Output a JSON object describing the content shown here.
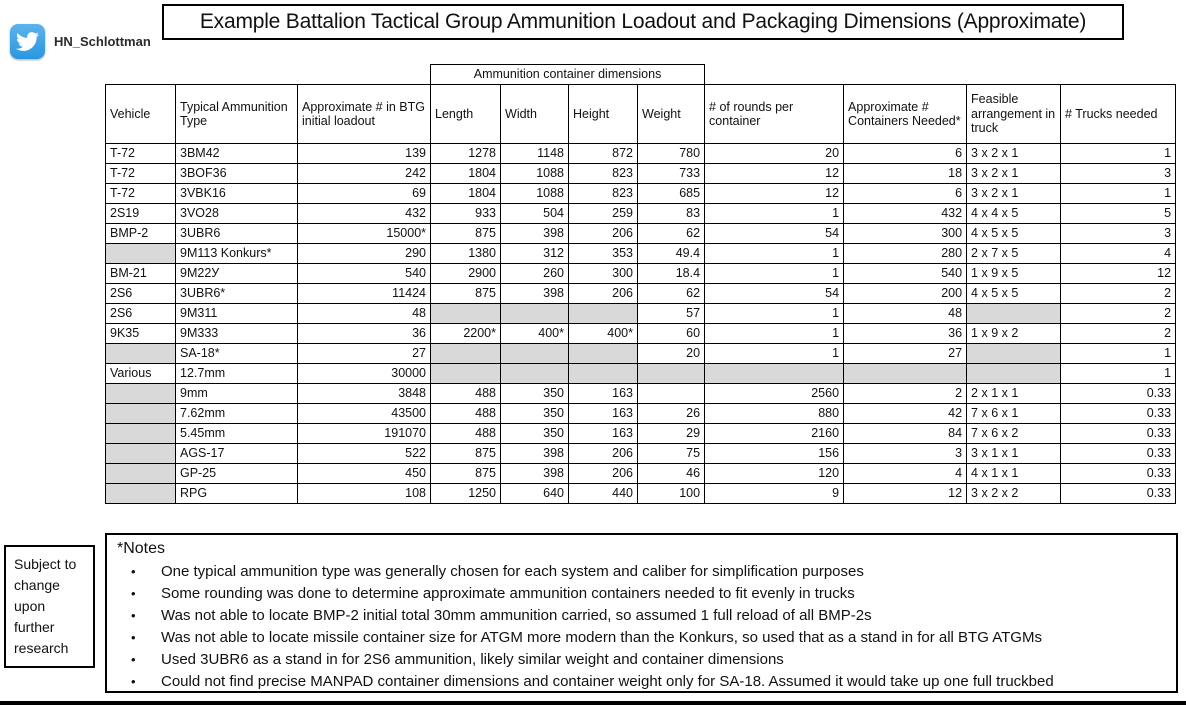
{
  "page": {
    "title": "Example Battalion Tactical Group Ammunition Loadout and Packaging Dimensions (Approximate)"
  },
  "twitter": {
    "handle": "HN_Schlottman",
    "icon": "twitter-bird-icon",
    "icon_color": "#2a97e0"
  },
  "side_note": "Subject to change upon further research",
  "table": {
    "group_header": "Ammunition container dimensions",
    "columns": [
      "Vehicle",
      "Typical Ammunition Type",
      "Approximate # in BTG initial loadout",
      "Length",
      "Width",
      "Height",
      "Weight",
      "# of rounds per container",
      "Approximate # Containers Needed*",
      "Feasible arrangement in truck",
      "# Trucks needed"
    ],
    "shaded_cell_color": "#d9d9d9",
    "rows": [
      [
        "T-72",
        "3BM42",
        "139",
        "1278",
        "1148",
        "872",
        "780",
        "20",
        "6",
        "3 x 2 x 1",
        "1"
      ],
      [
        "T-72",
        "3BOF36",
        "242",
        "1804",
        "1088",
        "823",
        "733",
        "12",
        "18",
        "3 x 2 x 1",
        "3"
      ],
      [
        "T-72",
        "3VBK16",
        "69",
        "1804",
        "1088",
        "823",
        "685",
        "12",
        "6",
        "3 x 2 x 1",
        "1"
      ],
      [
        "2S19",
        "3VO28",
        "432",
        "933",
        "504",
        "259",
        "83",
        "1",
        "432",
        "4 x 4 x 5",
        "5"
      ],
      [
        "BMP-2",
        "3UBR6",
        "15000*",
        "875",
        "398",
        "206",
        "62",
        "54",
        "300",
        "4 x 5 x 5",
        "3"
      ],
      [
        null,
        "9M113 Konkurs*",
        "290",
        "1380",
        "312",
        "353",
        "49.4",
        "1",
        "280",
        "2 x 7 x 5",
        "4"
      ],
      [
        "BM-21",
        "9M22У",
        "540",
        "2900",
        "260",
        "300",
        "18.4",
        "1",
        "540",
        "1 x 9 x 5",
        "12"
      ],
      [
        "2S6",
        "3UBR6*",
        "11424",
        "875",
        "398",
        "206",
        "62",
        "54",
        "200",
        "4 x 5 x 5",
        "2"
      ],
      [
        "2S6",
        "9M311",
        "48",
        null,
        null,
        null,
        "57",
        "1",
        "48",
        null,
        "2"
      ],
      [
        "9K35",
        "9M333",
        "36",
        "2200*",
        "400*",
        "400*",
        "60",
        "1",
        "36",
        "1 x 9 x 2",
        "2"
      ],
      [
        null,
        "SA-18*",
        "27",
        null,
        null,
        null,
        "20",
        "1",
        "27",
        null,
        "1"
      ],
      [
        "Various",
        "12.7mm",
        "30000",
        null,
        null,
        null,
        null,
        null,
        null,
        null,
        "1"
      ],
      [
        null,
        "9mm",
        "3848",
        "488",
        "350",
        "163",
        "",
        "2560",
        "2",
        "2 x 1 x 1",
        "0.33"
      ],
      [
        null,
        "7.62mm",
        "43500",
        "488",
        "350",
        "163",
        "26",
        "880",
        "42",
        "7 x 6 x 1",
        "0.33"
      ],
      [
        null,
        "5.45mm",
        "191070",
        "488",
        "350",
        "163",
        "29",
        "2160",
        "84",
        "7 x 6 x 2",
        "0.33"
      ],
      [
        null,
        "AGS-17",
        "522",
        "875",
        "398",
        "206",
        "75",
        "156",
        "3",
        "3 x 1 x 1",
        "0.33"
      ],
      [
        null,
        "GP-25",
        "450",
        "875",
        "398",
        "206",
        "46",
        "120",
        "4",
        "4 x 1 x 1",
        "0.33"
      ],
      [
        null,
        "RPG",
        "108",
        "1250",
        "640",
        "440",
        "100",
        "9",
        "12",
        "3 x 2 x 2",
        "0.33"
      ]
    ]
  },
  "notes": {
    "title": "*Notes",
    "bullets": [
      "One typical ammunition type was generally chosen for each system and caliber for simplification purposes",
      "Some rounding was done to determine approximate ammunition containers needed to fit evenly in trucks",
      "Was not able to locate BMP-2 initial total 30mm ammunition carried, so assumed 1 full reload of all BMP-2s",
      "Was not able to locate missile container size for ATGM more modern than the Konkurs, so used that as a stand in for all BTG ATGMs",
      "Used 3UBR6 as a stand in for 2S6 ammunition, likely similar weight and container dimensions",
      "Could not find precise MANPAD container dimensions and container weight only for SA-18. Assumed it would take up one full truckbed"
    ]
  }
}
